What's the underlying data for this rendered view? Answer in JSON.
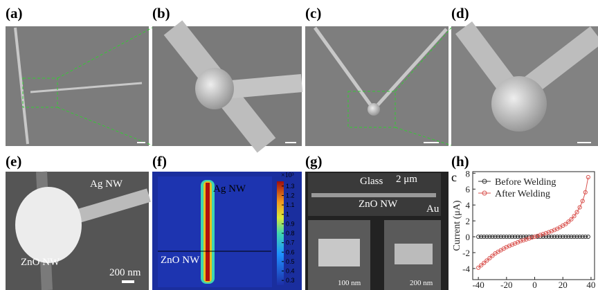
{
  "panels": {
    "a": {
      "label": "(a)"
    },
    "b": {
      "label": "(b)"
    },
    "c": {
      "label": "(c)"
    },
    "d": {
      "label": "(d)"
    },
    "e": {
      "label": "(e)",
      "texts": [
        "Ag NW",
        "ZnO NW",
        "200 nm"
      ]
    },
    "f": {
      "label": "(f)",
      "texts": [
        "Ag NW",
        "ZnO NW"
      ],
      "colorbar": {
        "multiplier": "×10³",
        "clim": [
          0.25,
          1.35
        ],
        "ticks": [
          1.3,
          1.2,
          1.1,
          1,
          0.9,
          0.8,
          0.7,
          0.6,
          0.5,
          0.4,
          0.3
        ]
      }
    },
    "g": {
      "label": "(g)",
      "texts": [
        "Glass",
        "2 μm",
        "ZnO NW",
        "Au",
        "100 nm",
        "200 nm"
      ]
    },
    "h": {
      "label": "(h)"
    }
  },
  "chart_data": {
    "type": "line",
    "annotations": [
      "c"
    ],
    "ylabel": "Current (μA)",
    "x": [
      -40,
      -38,
      -36,
      -34,
      -32,
      -30,
      -28,
      -26,
      -24,
      -22,
      -20,
      -18,
      -16,
      -14,
      -12,
      -10,
      -8,
      -6,
      -4,
      -2,
      0,
      2,
      4,
      6,
      8,
      10,
      12,
      14,
      16,
      18,
      20,
      22,
      24,
      26,
      28,
      30,
      32,
      34,
      36,
      38
    ],
    "series": [
      {
        "name": "Before Welding",
        "color": "#333333",
        "values": [
          0,
          0,
          0,
          0,
          0,
          0,
          0,
          0,
          0,
          0,
          0,
          0,
          0,
          0,
          0,
          0,
          0,
          0,
          0,
          0,
          0,
          0,
          0,
          0,
          0,
          0,
          0,
          0,
          0,
          0,
          0,
          0,
          0,
          0,
          0,
          0,
          0,
          0,
          0,
          0
        ]
      },
      {
        "name": "After Welding",
        "color": "#d9534f",
        "values": [
          -3.9,
          -3.6,
          -3.3,
          -3.0,
          -2.7,
          -2.4,
          -2.1,
          -1.9,
          -1.7,
          -1.5,
          -1.3,
          -1.15,
          -1.0,
          -0.85,
          -0.7,
          -0.55,
          -0.45,
          -0.33,
          -0.22,
          -0.1,
          0,
          0.1,
          0.22,
          0.33,
          0.45,
          0.57,
          0.7,
          0.85,
          1.0,
          1.2,
          1.4,
          1.6,
          1.9,
          2.2,
          2.6,
          3.1,
          3.7,
          4.5,
          5.6,
          7.5
        ]
      }
    ],
    "xlim": [
      -44,
      42.5
    ],
    "xticks": [
      -40,
      -20,
      0,
      20,
      40
    ],
    "ylim": [
      -5.4,
      8.2
    ],
    "yticks": [
      8,
      6,
      4,
      2,
      0,
      -2,
      -4
    ],
    "legend": "upper left"
  }
}
